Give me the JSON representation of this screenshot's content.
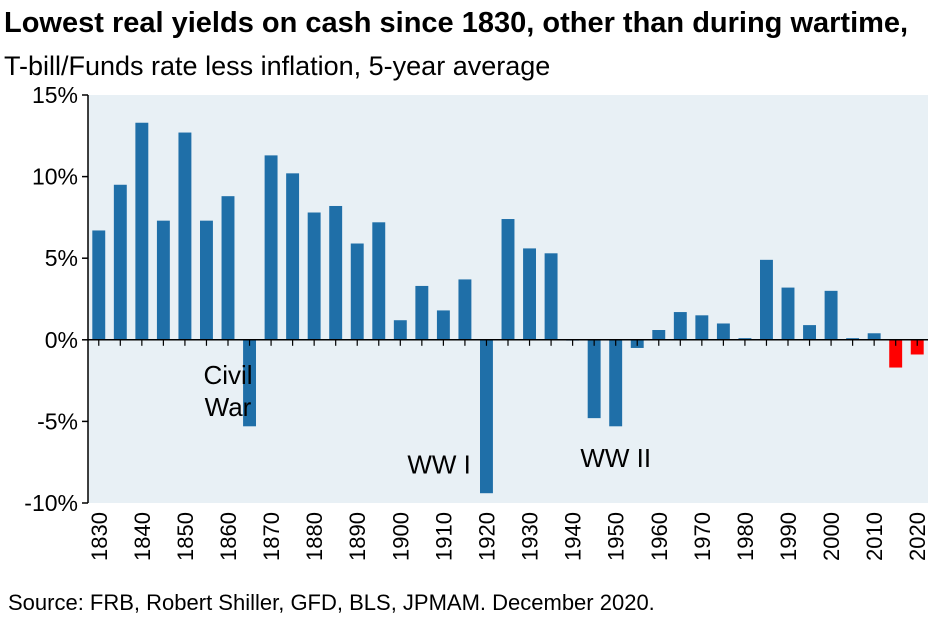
{
  "chart_data": {
    "type": "bar",
    "title": "Lowest real yields on cash since 1830, other than during wartime,",
    "subtitle": "T-bill/Funds rate less inflation, 5-year average",
    "xlabel": "",
    "ylabel": "",
    "ylim": [
      -10,
      15
    ],
    "yticks": [
      15,
      10,
      5,
      0,
      -5,
      -10
    ],
    "ytick_labels": [
      "15%",
      "10%",
      "5%",
      "0%",
      "-5%",
      "-10%"
    ],
    "xticks": [
      1830,
      1840,
      1850,
      1860,
      1870,
      1880,
      1890,
      1900,
      1910,
      1920,
      1930,
      1940,
      1950,
      1960,
      1970,
      1980,
      1990,
      2000,
      2010,
      2020
    ],
    "grid": false,
    "colors": {
      "bar": "#1f6fa8",
      "highlight": "#ff0000",
      "plot_bg": "#e8f0f5"
    },
    "x": [
      1830,
      1835,
      1840,
      1845,
      1850,
      1855,
      1860,
      1865,
      1870,
      1875,
      1880,
      1885,
      1890,
      1895,
      1900,
      1905,
      1910,
      1915,
      1920,
      1925,
      1930,
      1935,
      1940,
      1945,
      1950,
      1955,
      1960,
      1965,
      1970,
      1975,
      1980,
      1985,
      1990,
      1995,
      2000,
      2005,
      2010,
      2015,
      2020
    ],
    "values": [
      6.7,
      9.5,
      13.3,
      7.3,
      12.7,
      7.3,
      8.8,
      -5.3,
      11.3,
      10.2,
      7.8,
      8.2,
      5.9,
      7.2,
      1.2,
      3.3,
      1.8,
      3.7,
      -9.4,
      7.4,
      5.6,
      5.3,
      0.0,
      -4.8,
      -5.3,
      -0.5,
      0.6,
      1.7,
      1.5,
      1.0,
      0.1,
      4.9,
      3.2,
      0.9,
      3.0,
      0.1,
      0.4,
      -1.7,
      -0.9
    ],
    "highlight_x": [
      2015,
      2020
    ],
    "annotations": [
      {
        "lines": [
          "Civil",
          "War"
        ],
        "x": 1860,
        "y": -2.7
      },
      {
        "lines": [
          "WW I"
        ],
        "x": 1909,
        "y": -8.2
      },
      {
        "lines": [
          "WW II"
        ],
        "x": 1950,
        "y": -7.8
      }
    ],
    "source": "Source: FRB, Robert Shiller, GFD, BLS, JPMAM.  December 2020."
  }
}
